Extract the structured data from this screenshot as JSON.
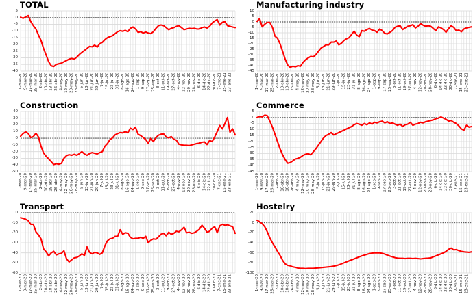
{
  "chart_data": {
    "type": "line",
    "layout": "2x3-grid",
    "x_tick_labels": [
      "1-mar-20",
      "9-mar-20",
      "17-mar-20",
      "25-mar-20",
      "2-abr-20",
      "10-abr-20",
      "18-abr-20",
      "26-abr-20",
      "4-may-20",
      "12-may-20",
      "20-may-20",
      "28-may-20",
      "5-jun-20",
      "13-jun-20",
      "21-jun-20",
      "29-jun-20",
      "7-jul-20",
      "15-jul-20",
      "23-jul-20",
      "31-jul-20",
      "8-ago-20",
      "16-ago-20",
      "24-ago-20",
      "1-sep-20",
      "9-sep-20",
      "17-sep-20",
      "25-sep-20",
      "3-oct-20",
      "11-oct-20",
      "19-oct-20",
      "27-oct-20",
      "4-nov-20",
      "12-nov-20",
      "20-nov-20",
      "28-nov-20",
      "6-dic-20",
      "14-dic-20",
      "22-dic-20",
      "30-dic-20",
      "7-ene-21",
      "15-ene-21",
      "23-ene-21"
    ],
    "x_tick_step_days": 8,
    "sample_step_days": 4,
    "series_color": "#ff0000",
    "grid_color": "#d9d9d9",
    "zero_line_color": "#333333",
    "grid": true,
    "legend": false,
    "charts": [
      {
        "title": "TOTAL",
        "ylim": [
          -40,
          5
        ],
        "y_tick_step": 5,
        "values": [
          0.3,
          -0.5,
          0.5,
          1.5,
          -3,
          -6,
          -8.5,
          -13,
          -17,
          -23,
          -28,
          -33,
          -36,
          -36.5,
          -35,
          -34.5,
          -34,
          -33,
          -32,
          -31,
          -30.5,
          -31,
          -29.5,
          -27.5,
          -26,
          -24.5,
          -23,
          -21.5,
          -21.8,
          -20.5,
          -22,
          -19.5,
          -18.5,
          -16.5,
          -15,
          -14.2,
          -13.5,
          -12,
          -10.5,
          -9.8,
          -10.2,
          -9.5,
          -10.5,
          -8,
          -7,
          -8.5,
          -11,
          -10.5,
          -11.5,
          -10.8,
          -11.5,
          -12,
          -10.5,
          -8,
          -6,
          -5.5,
          -6,
          -7.5,
          -9,
          -8,
          -7.5,
          -6.5,
          -6,
          -7.5,
          -9,
          -8.5,
          -8,
          -8.2,
          -8,
          -8.5,
          -8.5,
          -7.5,
          -7,
          -7.8,
          -6.5,
          -4,
          -2.5,
          -1.5,
          -5.5,
          -3.5,
          -3,
          -6,
          -6.5,
          -7,
          -7.5
        ]
      },
      {
        "title": "Manufacturing industry",
        "ylim": [
          -45,
          10
        ],
        "y_tick_step": 5,
        "values": [
          0.5,
          3,
          -4.5,
          -2,
          -0.5,
          -0.5,
          -5,
          -13,
          -15,
          -20,
          -27,
          -34,
          -39.5,
          -41.5,
          -40.5,
          -41,
          -40,
          -40.5,
          -37,
          -34.5,
          -33,
          -31.5,
          -32,
          -30,
          -27,
          -24,
          -22.5,
          -21,
          -21,
          -18.5,
          -18.5,
          -17.5,
          -21,
          -19.5,
          -17,
          -15.5,
          -14.5,
          -11.5,
          -8.5,
          -12,
          -13.5,
          -8,
          -8.5,
          -7,
          -6,
          -7.5,
          -8,
          -9.5,
          -6.5,
          -8,
          -10.5,
          -11,
          -9.5,
          -8,
          -5,
          -4,
          -3.5,
          -7,
          -5.5,
          -4,
          -3.5,
          -2.5,
          -5.5,
          -4,
          -1.5,
          -3,
          -4,
          -3.5,
          -4,
          -6,
          -8,
          -4.5,
          -5.5,
          -7,
          -9.5,
          -6,
          -3.5,
          -5,
          -8,
          -7.5,
          -9,
          -6.5,
          -5.5,
          -5,
          -4.5
        ]
      },
      {
        "title": "Construction",
        "ylim": [
          -50,
          40
        ],
        "y_tick_step": 10,
        "values": [
          3,
          7,
          9.5,
          7,
          1,
          2.5,
          7.5,
          2,
          -12,
          -22,
          -27,
          -31,
          -35,
          -39.5,
          -38,
          -39,
          -37.5,
          -30,
          -26,
          -24.5,
          -25.5,
          -24,
          -25.5,
          -23,
          -20,
          -23.5,
          -25.5,
          -23,
          -21.5,
          -22.5,
          -23.5,
          -21.5,
          -20,
          -12,
          -8,
          -2,
          0.5,
          5,
          7,
          8.5,
          8,
          10,
          8,
          15,
          13,
          16.5,
          6,
          4,
          1,
          -2,
          -7.5,
          0,
          -5,
          1,
          4.5,
          6,
          6.5,
          2,
          0.5,
          2.5,
          -1.5,
          -3,
          -9,
          -10,
          -10.5,
          -10.5,
          -11,
          -10,
          -9,
          -8,
          -7.5,
          -6,
          -5.5,
          -9.5,
          -3.5,
          -5,
          2,
          10,
          19,
          14,
          22,
          31,
          9,
          14,
          5
        ]
      },
      {
        "title": "Commerce",
        "ylim": [
          -45,
          5
        ],
        "y_tick_step": 5,
        "values": [
          0,
          1,
          0.5,
          2,
          1.5,
          -3,
          -8,
          -14,
          -20,
          -26,
          -31,
          -35,
          -38,
          -37.5,
          -36,
          -34.5,
          -34,
          -33,
          -31.5,
          -30.5,
          -30,
          -31,
          -28.5,
          -26,
          -23,
          -20,
          -17,
          -15,
          -14,
          -12.5,
          -14.5,
          -13.5,
          -12.5,
          -11.5,
          -10.5,
          -9.5,
          -8.5,
          -7.5,
          -6,
          -5,
          -5.5,
          -6.5,
          -5,
          -6,
          -4.5,
          -5.5,
          -4,
          -4.5,
          -3.5,
          -3,
          -4.5,
          -3.5,
          -5,
          -4.5,
          -5.5,
          -6.5,
          -5.5,
          -7.5,
          -6,
          -5.5,
          -4,
          -6.5,
          -5.5,
          -5,
          -4,
          -4.5,
          -3.5,
          -3,
          -2.5,
          -2,
          -1,
          -0.5,
          0.5,
          -0.5,
          -1.5,
          -3,
          -2.5,
          -4,
          -5,
          -7,
          -9.5,
          -10.5,
          -6.5,
          -8,
          -7.5
        ]
      },
      {
        "title": "Transport",
        "ylim": [
          -60,
          0
        ],
        "y_tick_step": 10,
        "values": [
          -5,
          -5.5,
          -6.5,
          -8,
          -11.5,
          -11.5,
          -19,
          -22,
          -26,
          -36,
          -39,
          -43,
          -40,
          -38.5,
          -42,
          -41,
          -40.5,
          -38,
          -46,
          -49,
          -47,
          -45,
          -44.5,
          -43,
          -41,
          -42.5,
          -34,
          -39.5,
          -41,
          -39.5,
          -40,
          -41.5,
          -40,
          -33,
          -28,
          -26,
          -25.5,
          -23.5,
          -23.5,
          -17,
          -21.5,
          -20,
          -20.5,
          -24.5,
          -26,
          -25.5,
          -25.5,
          -24.5,
          -25.5,
          -23.5,
          -30,
          -27.5,
          -26,
          -26.5,
          -24,
          -21.5,
          -20.5,
          -23,
          -19.5,
          -21.5,
          -20.5,
          -18.5,
          -19,
          -17,
          -14.5,
          -20,
          -19.5,
          -20.5,
          -20,
          -18.5,
          -16.5,
          -12.5,
          -15.5,
          -19.5,
          -18.5,
          -15.5,
          -14,
          -20,
          -13,
          -11.5,
          -12.5,
          -12,
          -13,
          -14,
          -20.5
        ]
      },
      {
        "title": "Hostelry",
        "ylim": [
          -100,
          20
        ],
        "y_tick_step": 20,
        "values": [
          5,
          2,
          -2,
          -8,
          -18,
          -30,
          -40,
          -48,
          -57,
          -65,
          -75,
          -82,
          -85,
          -86,
          -88,
          -89,
          -90.5,
          -91,
          -91,
          -91.5,
          -91,
          -91,
          -91,
          -90.5,
          -90,
          -89.5,
          -89,
          -88.5,
          -88,
          -87.5,
          -86.5,
          -85.5,
          -84,
          -82,
          -80,
          -78,
          -76,
          -74,
          -72,
          -70,
          -68,
          -66,
          -64.5,
          -63,
          -61.5,
          -60.5,
          -60,
          -60,
          -60,
          -61,
          -62.5,
          -64.5,
          -66.5,
          -68,
          -69.5,
          -70.5,
          -71,
          -71,
          -71.5,
          -71,
          -71,
          -71.5,
          -71,
          -71.5,
          -72,
          -71.5,
          -71,
          -70.5,
          -70,
          -68,
          -66,
          -64,
          -62,
          -60,
          -57,
          -53,
          -50.5,
          -54,
          -53.5,
          -55.5,
          -57,
          -58,
          -58.5,
          -59,
          -58
        ]
      }
    ]
  }
}
